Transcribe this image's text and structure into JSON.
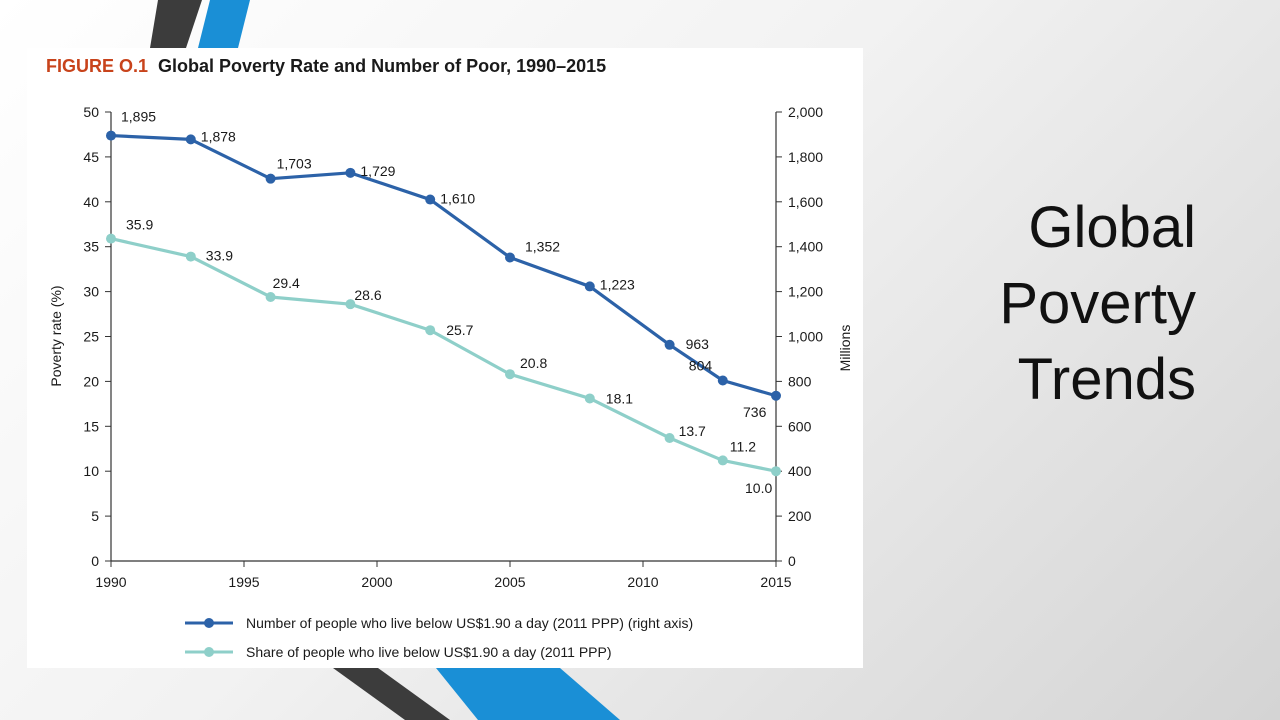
{
  "slide": {
    "title_lines": [
      "Global",
      "Poverty",
      "Trends"
    ]
  },
  "colors": {
    "accent_blue": "#1a8fd6",
    "dark_stripe": "#3c3c3c",
    "figure_label": "#c8431b",
    "series_count": "#2c62a8",
    "series_share": "#8ecfc9"
  },
  "chart_data": {
    "type": "line",
    "figure_label": "FIGURE O.1",
    "title": "Global Poverty Rate and Number of Poor, 1990–2015",
    "ylabel": "Poverty  rate (%)",
    "y2label": "Millions",
    "x": [
      1990,
      1993,
      1996,
      1999,
      2002,
      2005,
      2008,
      2011,
      2013,
      2015
    ],
    "xlim": [
      1990,
      2015
    ],
    "ylim": [
      0,
      50
    ],
    "y2lim": [
      0,
      2000
    ],
    "x_ticks": [
      "1990",
      "1995",
      "2000",
      "2005",
      "2010",
      "2015"
    ],
    "y_ticks": [
      "0",
      "5",
      "10",
      "15",
      "20",
      "25",
      "30",
      "35",
      "40",
      "45",
      "50"
    ],
    "y2_ticks": [
      "0",
      "200",
      "400",
      "600",
      "800",
      "1,000",
      "1,200",
      "1,400",
      "1,600",
      "1,800",
      "2,000"
    ],
    "grid": false,
    "legend_position": "bottom",
    "series": [
      {
        "name": "Number of people who live below US$1.90 a day (2011 PPP) (right axis)",
        "axis": "right",
        "color": "#2c62a8",
        "values": [
          1895,
          1878,
          1703,
          1729,
          1610,
          1352,
          1223,
          963,
          804,
          736
        ],
        "labels": [
          "1,895",
          "1,878",
          "1,703",
          "1,729",
          "1,610",
          "1,352",
          "1,223",
          "963",
          "804",
          "736"
        ]
      },
      {
        "name": "Share of people who live below US$1.90 a day (2011 PPP)",
        "axis": "left",
        "color": "#8ecfc9",
        "values": [
          35.9,
          33.9,
          29.4,
          28.6,
          25.7,
          20.8,
          18.1,
          13.7,
          11.2,
          10.0
        ],
        "labels": [
          "35.9",
          "33.9",
          "29.4",
          "28.6",
          "25.7",
          "20.8",
          "18.1",
          "13.7",
          "11.2",
          "10.0"
        ]
      }
    ]
  }
}
